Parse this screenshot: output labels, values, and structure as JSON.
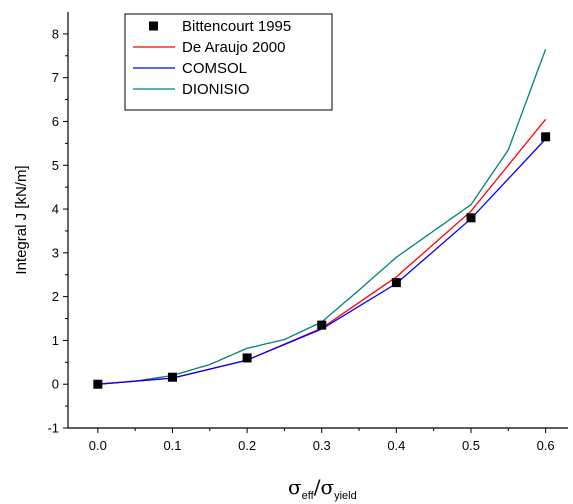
{
  "chart_data": {
    "type": "line",
    "xlabel": {
      "symbol": "σ",
      "numerator_sub": "eff",
      "slash": "/",
      "denominator_sub": "yield"
    },
    "ylabel": "Integral J [kN/m]",
    "xlim": [
      -0.04,
      0.63
    ],
    "ylim": [
      -1,
      8.5
    ],
    "x_ticks": [
      "0.0",
      "0.1",
      "0.2",
      "0.3",
      "0.4",
      "0.5",
      "0.6"
    ],
    "y_ticks": [
      "-1",
      "0",
      "1",
      "2",
      "3",
      "4",
      "5",
      "6",
      "7",
      "8"
    ],
    "legend_position": "top-left",
    "series": [
      {
        "name": "Bittencourt 1995",
        "kind": "markers",
        "color": "#000000",
        "x": [
          0.0,
          0.1,
          0.2,
          0.3,
          0.4,
          0.5,
          0.6
        ],
        "y": [
          0.0,
          0.16,
          0.6,
          1.35,
          2.32,
          3.8,
          5.65
        ]
      },
      {
        "name": "De Araujo 2000",
        "kind": "line",
        "color": "#ff0000",
        "x": [
          0.0,
          0.1,
          0.2,
          0.3,
          0.4,
          0.5,
          0.6
        ],
        "y": [
          0.0,
          0.14,
          0.55,
          1.28,
          2.45,
          3.95,
          6.05
        ]
      },
      {
        "name": "COMSOL",
        "kind": "line",
        "color": "#0000ff",
        "x": [
          0.0,
          0.1,
          0.2,
          0.3,
          0.4,
          0.5,
          0.6
        ],
        "y": [
          0.0,
          0.14,
          0.55,
          1.26,
          2.3,
          3.78,
          5.6
        ]
      },
      {
        "name": "DIONISIO",
        "kind": "line",
        "color": "#008080",
        "x": [
          0.0,
          0.05,
          0.1,
          0.15,
          0.2,
          0.25,
          0.3,
          0.35,
          0.4,
          0.45,
          0.5,
          0.55,
          0.6
        ],
        "y": [
          0.0,
          0.07,
          0.2,
          0.45,
          0.82,
          1.02,
          1.42,
          2.15,
          2.9,
          3.5,
          4.1,
          5.35,
          7.65
        ]
      }
    ]
  }
}
